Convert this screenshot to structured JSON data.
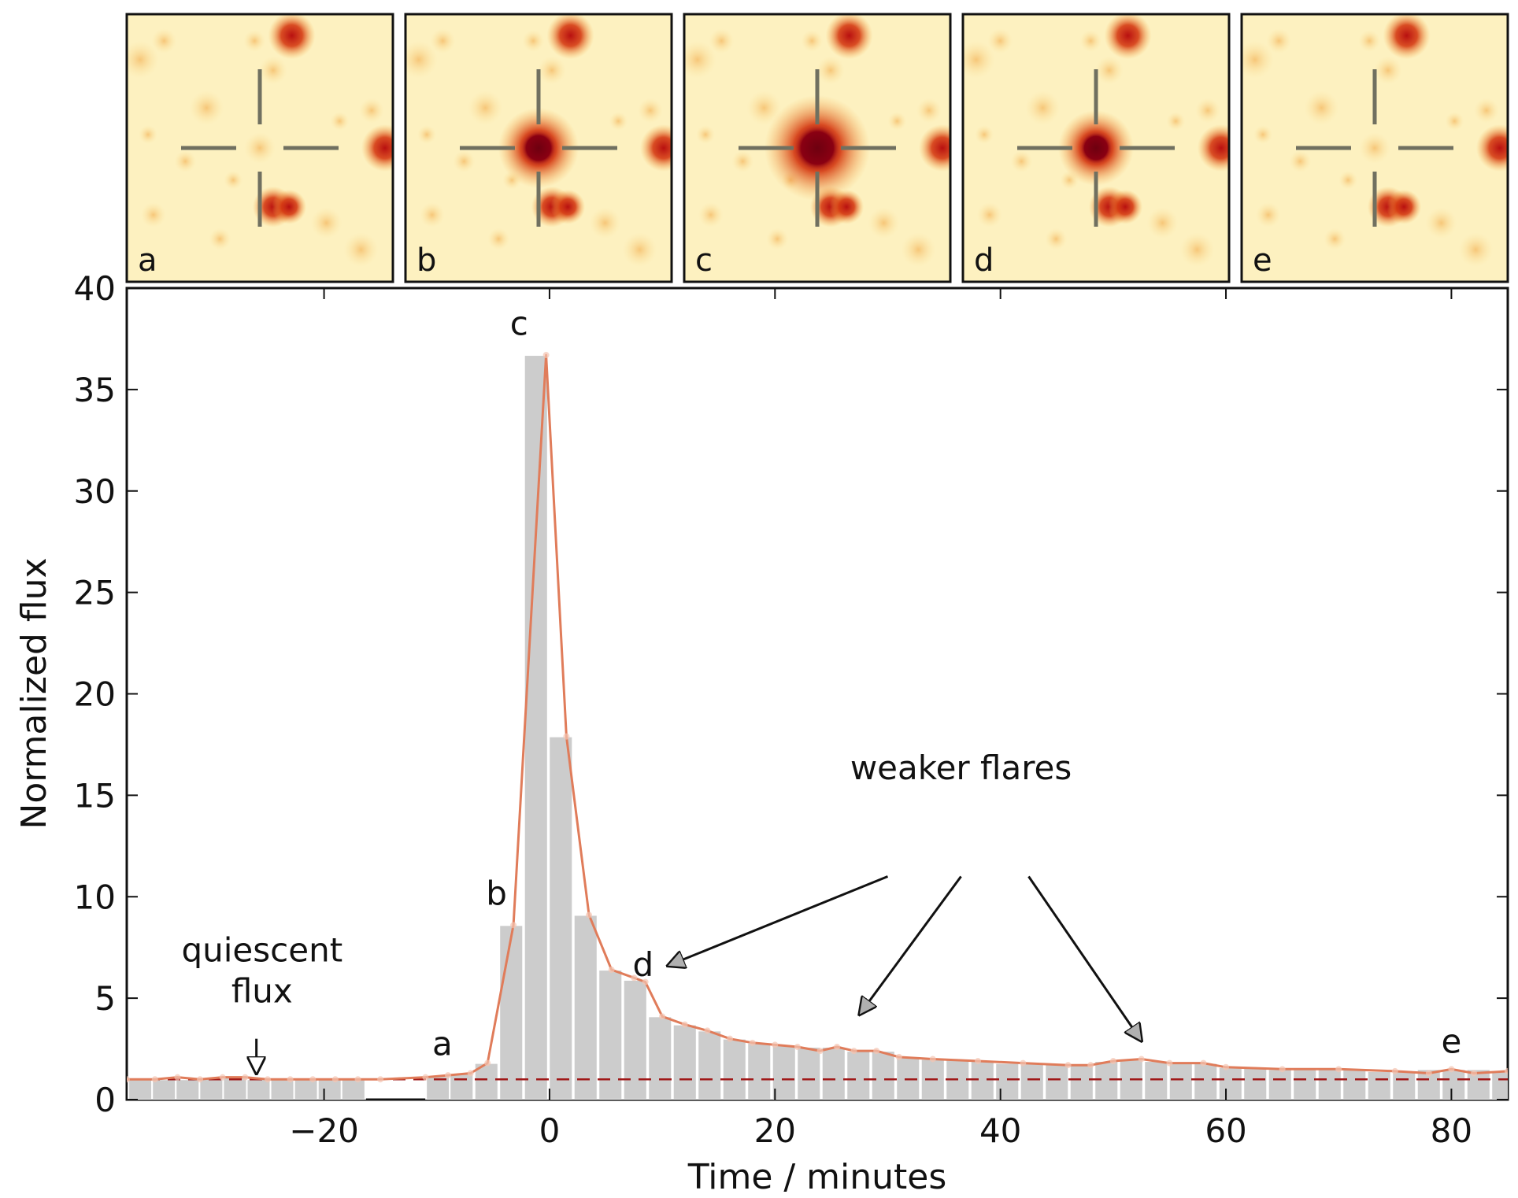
{
  "chart_data": {
    "type": "bar",
    "xlabel": "Time / minutes",
    "ylabel": "Normalized flux",
    "xlim": [
      -37.5,
      85
    ],
    "ylim": [
      0,
      40
    ],
    "x_ticks": [
      -20,
      0,
      20,
      40,
      60,
      80
    ],
    "x_tick_labels": [
      "−20",
      "0",
      "20",
      "40",
      "60",
      "80"
    ],
    "y_ticks": [
      0,
      5,
      10,
      15,
      20,
      25,
      30,
      35,
      40
    ],
    "y_tick_labels": [
      "0",
      "5",
      "10",
      "15",
      "20",
      "25",
      "30",
      "35",
      "40"
    ],
    "grid": false,
    "bar_width": 2.1,
    "bars": {
      "x": [
        -36.3,
        -34.2,
        -32.1,
        -30.0,
        -27.9,
        -25.8,
        -23.7,
        -21.6,
        -19.5,
        -17.4,
        -9.9,
        -7.8,
        -5.6,
        -3.4,
        -1.2,
        1.0,
        3.2,
        5.4,
        7.6,
        9.8,
        12.0,
        14.2,
        16.4,
        18.6,
        20.8,
        23.0,
        25.2,
        27.4,
        29.6,
        31.8,
        34.0,
        36.2,
        38.4,
        40.6,
        42.8,
        45.0,
        47.2,
        49.4,
        51.6,
        53.8,
        56.0,
        58.2,
        60.4,
        62.6,
        64.8,
        67.0,
        69.2,
        71.4,
        73.6,
        75.8,
        78.0,
        80.2,
        82.4,
        84.6
      ],
      "values": [
        1.0,
        1.0,
        1.0,
        1.1,
        1.1,
        1.0,
        1.0,
        1.0,
        1.0,
        1.0,
        1.2,
        1.3,
        1.8,
        8.6,
        36.7,
        17.9,
        9.1,
        6.4,
        5.9,
        4.1,
        3.7,
        3.4,
        3.0,
        2.8,
        2.7,
        2.6,
        2.6,
        2.4,
        2.4,
        2.1,
        2.0,
        2.0,
        1.9,
        1.8,
        1.8,
        1.8,
        1.7,
        1.9,
        2.0,
        1.9,
        1.8,
        1.8,
        1.6,
        1.6,
        1.5,
        1.5,
        1.5,
        1.5,
        1.4,
        1.4,
        1.5,
        1.5,
        1.5,
        1.4
      ],
      "color": "#cccccc"
    },
    "line": {
      "x": [
        -37.5,
        -35.0,
        -33.0,
        -31.0,
        -29.0,
        -27.0,
        -25.0,
        -23.0,
        -21.0,
        -19.0,
        -17.0,
        -15.0,
        -11.0,
        -9.0,
        -7.0,
        -5.5,
        -3.2,
        -0.3,
        1.5,
        3.5,
        5.5,
        7.5,
        8.5,
        10.0,
        12.0,
        14.0,
        16.0,
        18.0,
        20.0,
        22.0,
        24.0,
        25.5,
        27.0,
        29.0,
        31.0,
        34.0,
        38.0,
        42.0,
        46.0,
        48.0,
        50.0,
        52.5,
        55.0,
        58.0,
        60.0,
        65.0,
        70.0,
        75.0,
        78.0,
        80.0,
        82.0,
        85.0
      ],
      "y": [
        1.0,
        1.0,
        1.1,
        1.0,
        1.1,
        1.1,
        1.0,
        1.0,
        1.0,
        1.0,
        1.0,
        1.0,
        1.1,
        1.2,
        1.3,
        1.8,
        8.6,
        36.7,
        17.9,
        9.1,
        6.4,
        6.0,
        5.8,
        4.1,
        3.7,
        3.4,
        3.0,
        2.8,
        2.7,
        2.6,
        2.4,
        2.6,
        2.4,
        2.4,
        2.1,
        2.0,
        1.9,
        1.8,
        1.7,
        1.7,
        1.9,
        2.0,
        1.8,
        1.8,
        1.6,
        1.5,
        1.5,
        1.4,
        1.3,
        1.5,
        1.3,
        1.4
      ],
      "color": "#e07c5a"
    },
    "quiescent_level": {
      "y": 1.0,
      "color": "#a01818",
      "style": "dashed"
    },
    "annotations": {
      "point_labels": [
        {
          "text": "a",
          "x": -9.5,
          "y": 2.2
        },
        {
          "text": "b",
          "x": -4.7,
          "y": 9.6
        },
        {
          "text": "c",
          "x": -2.7,
          "y": 37.7
        },
        {
          "text": "d",
          "x": 8.3,
          "y": 6.1
        },
        {
          "text": "e",
          "x": 80.0,
          "y": 2.3
        }
      ],
      "quiescent_line1": "quiescent",
      "quiescent_line2": "flux",
      "weaker_flares": "weaker flares"
    },
    "quiescent_arrow": {
      "x": -26.0,
      "y_from": 3.0,
      "y_to": 1.3
    },
    "flare_arrows": [
      {
        "x_from": 30.0,
        "y_from": 11.0,
        "x_to": 10.5,
        "y_to": 6.6
      },
      {
        "x_from": 36.5,
        "y_from": 11.0,
        "x_to": 27.5,
        "y_to": 4.2
      },
      {
        "x_from": 42.5,
        "y_from": 11.0,
        "x_to": 52.5,
        "y_to": 2.9
      }
    ],
    "insets": [
      {
        "label": "a",
        "center_intensity": 0.2,
        "center_size": 0.3
      },
      {
        "label": "b",
        "center_intensity": 0.9,
        "center_size": 0.9
      },
      {
        "label": "c",
        "center_intensity": 1.0,
        "center_size": 1.4
      },
      {
        "label": "d",
        "center_intensity": 0.85,
        "center_size": 0.8
      },
      {
        "label": "e",
        "center_intensity": 0.25,
        "center_size": 0.3
      }
    ]
  }
}
